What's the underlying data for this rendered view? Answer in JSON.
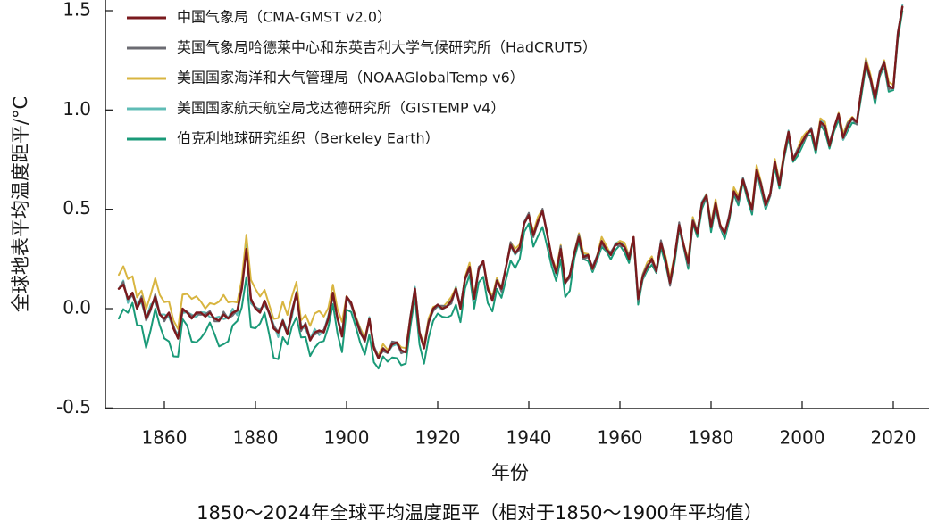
{
  "chart_data": {
    "type": "line",
    "title": "1850～2024年全球平均温度距平（相对于1850～1900年平均值）",
    "xlabel": "年份",
    "ylabel": "全球地表平均温度距平/°C",
    "xlim": [
      1848,
      2025
    ],
    "ylim": [
      -0.5,
      1.5
    ],
    "x_ticks": [
      1860,
      1880,
      1900,
      1920,
      1940,
      1960,
      1980,
      2000,
      2020
    ],
    "y_ticks": [
      -0.5,
      0.0,
      0.5,
      1.0,
      1.5
    ],
    "y_tick_labels": [
      "-0.5",
      "0.0",
      "0.5",
      "1.0",
      "1.5"
    ],
    "legend_position": "top-left",
    "grid": false,
    "x_start": 1850,
    "reference": [
      0.1,
      0.12,
      0.05,
      0.08,
      0.0,
      0.05,
      -0.05,
      0.0,
      0.06,
      -0.03,
      -0.05,
      -0.02,
      -0.1,
      -0.15,
      0.0,
      -0.02,
      -0.05,
      -0.02,
      -0.02,
      -0.04,
      -0.02,
      -0.05,
      -0.06,
      -0.03,
      -0.05,
      -0.02,
      -0.01,
      0.1,
      0.3,
      0.05,
      0.0,
      -0.02,
      0.04,
      -0.02,
      -0.1,
      -0.12,
      -0.06,
      -0.13,
      -0.02,
      0.08,
      -0.1,
      -0.08,
      -0.16,
      -0.12,
      -0.11,
      -0.12,
      -0.05,
      0.08,
      -0.05,
      -0.14,
      0.06,
      0.03,
      -0.05,
      -0.12,
      -0.16,
      -0.05,
      -0.2,
      -0.25,
      -0.2,
      -0.22,
      -0.18,
      -0.17,
      -0.21,
      -0.22,
      -0.05,
      0.1,
      -0.12,
      -0.2,
      -0.07,
      0.0,
      0.02,
      0.0,
      0.01,
      0.04,
      0.1,
      0.0,
      0.15,
      0.21,
      0.05,
      0.2,
      0.24,
      0.1,
      0.04,
      0.14,
      0.1,
      0.21,
      0.32,
      0.28,
      0.31,
      0.43,
      0.47,
      0.37,
      0.44,
      0.49,
      0.38,
      0.26,
      0.18,
      0.3,
      0.13,
      0.17,
      0.28,
      0.36,
      0.26,
      0.27,
      0.2,
      0.26,
      0.34,
      0.3,
      0.27,
      0.32,
      0.33,
      0.31,
      0.25,
      0.36,
      0.05,
      0.16,
      0.21,
      0.25,
      0.19,
      0.33,
      0.25,
      0.13,
      0.26,
      0.42,
      0.32,
      0.23,
      0.44,
      0.38,
      0.53,
      0.57,
      0.41,
      0.53,
      0.42,
      0.38,
      0.46,
      0.59,
      0.55,
      0.65,
      0.57,
      0.5,
      0.7,
      0.62,
      0.52,
      0.58,
      0.74,
      0.62,
      0.77,
      0.89,
      0.75,
      0.79,
      0.84,
      0.88,
      0.9,
      0.8,
      0.94,
      0.92,
      0.82,
      0.91,
      0.98,
      0.86,
      0.92,
      0.96,
      0.94,
      1.1,
      1.24,
      1.16,
      1.06,
      1.18,
      1.24,
      1.12,
      1.11,
      1.38,
      1.52
    ],
    "series": [
      {
        "name": "中国气象局（CMA-GMST v2.0）",
        "color": "#7a1a1e",
        "offset": 0.0
      },
      {
        "name": "英国气象局哈德莱中心和东英吉利大学气候研究所（HadCRUT5）",
        "color": "#6b6b72",
        "offset": 0.0
      },
      {
        "name": "美国国家海洋和大气管理局（NOAAGlobalTemp v6）",
        "color": "#d8b540",
        "offset": 0.01
      },
      {
        "name": "美国国家航天航空局戈达德研究所（GISTEMP v4）",
        "color": "#5fbcb6",
        "offset": 0.0
      },
      {
        "name": "伯克利地球研究组织（Berkeley Earth）",
        "color": "#1a9a78",
        "offset": -0.02
      }
    ]
  }
}
